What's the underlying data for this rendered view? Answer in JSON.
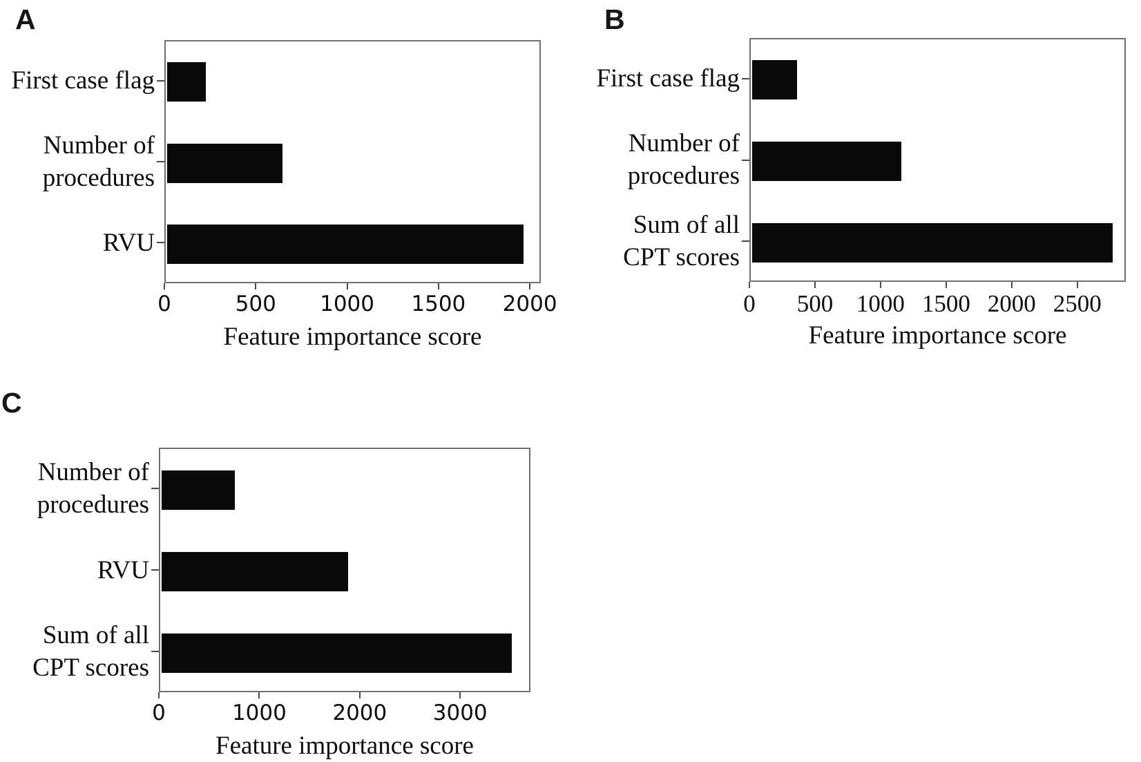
{
  "figure": {
    "background": "#ffffff",
    "bar_color": "#0a0a0a",
    "border_color": "#6f6f6f",
    "tick_color": "#4a4a4a",
    "text_color": "#0e0e0e"
  },
  "chart_data": [
    {
      "type": "bar",
      "orientation": "horizontal",
      "panel_label": "A",
      "categories": [
        [
          "First case flag"
        ],
        [
          "Number of",
          "procedures"
        ],
        [
          "RVU"
        ]
      ],
      "values": [
        210,
        630,
        1950
      ],
      "xticks": [
        0,
        500,
        1000,
        1500,
        2000
      ],
      "xlim": [
        0,
        2060
      ],
      "xlabel": "Feature importance score",
      "ylabel": "",
      "title": "",
      "grid": false,
      "legend": "none",
      "tick_style": "sans"
    },
    {
      "type": "bar",
      "orientation": "horizontal",
      "panel_label": "B",
      "categories": [
        [
          "First case flag"
        ],
        [
          "Number of",
          "procedures"
        ],
        [
          "Sum of all",
          "CPT scores"
        ]
      ],
      "values": [
        340,
        1140,
        2750
      ],
      "xticks": [
        0,
        500,
        1000,
        1500,
        2000,
        2500
      ],
      "xlim": [
        0,
        2870
      ],
      "xlabel": "Feature importance score",
      "ylabel": "",
      "title": "",
      "grid": false,
      "legend": "none",
      "tick_style": "serif"
    },
    {
      "type": "bar",
      "orientation": "horizontal",
      "panel_label": "C",
      "categories": [
        [
          "Number of",
          "procedures"
        ],
        [
          "RVU"
        ],
        [
          "Sum of all",
          "CPT scores"
        ]
      ],
      "values": [
        730,
        1860,
        3490
      ],
      "xticks": [
        0,
        1000,
        2000,
        3000
      ],
      "xlim": [
        0,
        3700
      ],
      "xlabel": "Feature importance score",
      "ylabel": "",
      "title": "",
      "grid": false,
      "legend": "none",
      "tick_style": "sans"
    }
  ]
}
